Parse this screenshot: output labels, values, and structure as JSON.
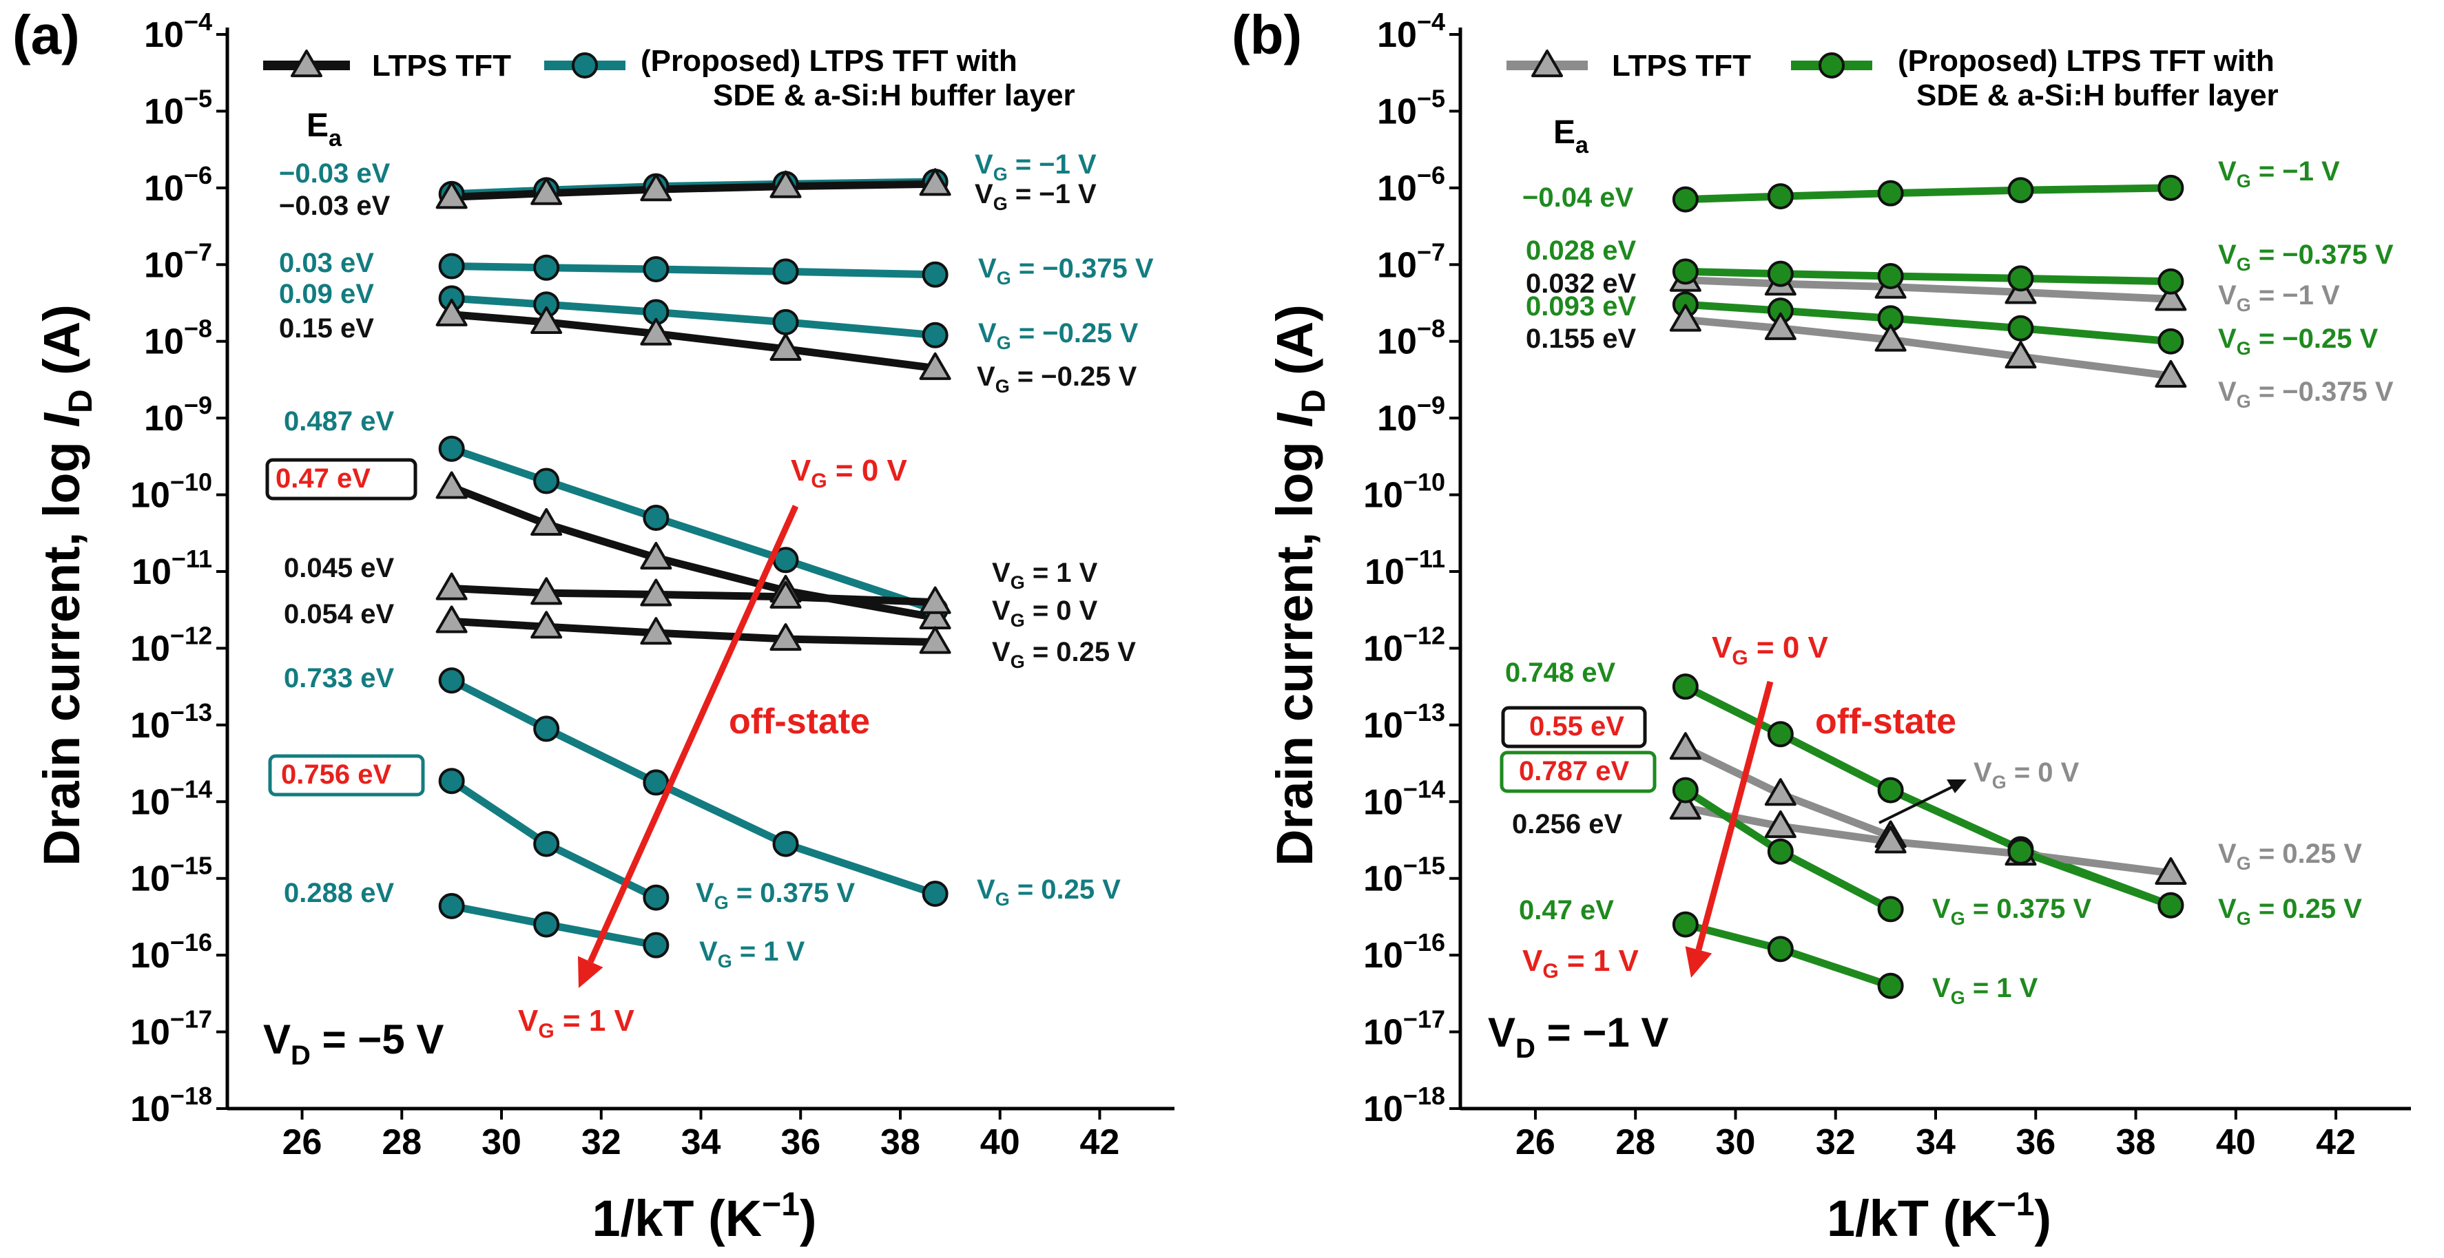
{
  "chart_data": [
    {
      "type": "line",
      "panel": "(a)",
      "xlabel_main": "1/kT (K",
      "xlabel_sup": "−1",
      "xlabel_end": ")",
      "ylabel_main": "Drain current, log ",
      "ylabel_var": "I",
      "ylabel_sub": "D",
      "ylabel_end": " (A)",
      "xlim": [
        24.5,
        43.5
      ],
      "ylim": [
        -18,
        -4
      ],
      "xticks": [
        "26",
        "28",
        "30",
        "32",
        "34",
        "36",
        "38",
        "40",
        "42"
      ],
      "yticks_base": "10",
      "yticks_exp": [
        "−4",
        "−5",
        "−6",
        "−7",
        "−8",
        "−9",
        "−10",
        "−11",
        "−12",
        "−13",
        "−14",
        "−15",
        "−16",
        "−17",
        "−18"
      ],
      "legend": [
        {
          "label": "LTPS TFT",
          "marker": "triangle",
          "color": "#111111"
        },
        {
          "label": "(Proposed) LTPS TFT with",
          "label2": "SDE & a-Si:H buffer layer",
          "marker": "circle",
          "color": "#137c80"
        }
      ],
      "ea_label": "E",
      "ea_sub": "a",
      "vd_main": "V",
      "vd_sub": "D",
      "vd_rest": " = −5 V",
      "offstate_label": "off-state",
      "arrow_top": {
        "main": "V",
        "sub": "G",
        "rest": " = 0 V"
      },
      "arrow_bottom": {
        "main": "V",
        "sub": "G",
        "rest": " = 1 V"
      },
      "series": [
        {
          "name": "Proposed V_G = -1 V",
          "marker": "circle",
          "color": "#137c80",
          "x": [
            29.0,
            30.9,
            33.1,
            35.7,
            38.7
          ],
          "y": [
            -6.08,
            -6.03,
            -5.98,
            -5.95,
            -5.92
          ]
        },
        {
          "name": "LTPS V_G = -1 V",
          "marker": "triangle",
          "color": "#111111",
          "x": [
            29.0,
            30.9,
            33.1,
            35.7,
            38.7
          ],
          "y": [
            -6.12,
            -6.07,
            -6.02,
            -5.98,
            -5.95
          ]
        },
        {
          "name": "Proposed V_G = -0.375 V",
          "marker": "circle",
          "color": "#137c80",
          "x": [
            29.0,
            30.9,
            33.1,
            35.7,
            38.7
          ],
          "y": [
            -7.02,
            -7.04,
            -7.06,
            -7.09,
            -7.13
          ]
        },
        {
          "name": "Proposed V_G = -0.25 V",
          "marker": "circle",
          "color": "#137c80",
          "x": [
            29.0,
            30.9,
            33.1,
            35.7,
            38.7
          ],
          "y": [
            -7.44,
            -7.52,
            -7.62,
            -7.75,
            -7.92
          ]
        },
        {
          "name": "LTPS V_G = -0.25 V",
          "marker": "triangle",
          "color": "#111111",
          "x": [
            29.0,
            30.9,
            33.1,
            35.7,
            38.7
          ],
          "y": [
            -7.65,
            -7.75,
            -7.9,
            -8.1,
            -8.35
          ]
        },
        {
          "name": "Proposed V_G = 0 V",
          "marker": "circle",
          "color": "#137c80",
          "x": [
            29.0,
            30.9,
            33.1,
            35.7,
            38.7
          ],
          "y": [
            -9.4,
            -9.82,
            -10.3,
            -10.85,
            -11.5
          ]
        },
        {
          "name": "LTPS V_G = 0 V",
          "marker": "triangle",
          "color": "#111111",
          "x": [
            29.0,
            30.9,
            33.1,
            35.7,
            38.7
          ],
          "y": [
            -9.9,
            -10.38,
            -10.82,
            -11.25,
            -11.6
          ]
        },
        {
          "name": "LTPS V_G = 1 V",
          "marker": "triangle",
          "color": "#111111",
          "x": [
            29.0,
            30.9,
            33.1,
            35.7,
            38.7
          ],
          "y": [
            -11.22,
            -11.28,
            -11.3,
            -11.33,
            -11.4
          ]
        },
        {
          "name": "LTPS V_G = 0.25 V",
          "marker": "triangle",
          "color": "#111111",
          "x": [
            29.0,
            30.9,
            33.1,
            35.7,
            38.7
          ],
          "y": [
            -11.65,
            -11.72,
            -11.8,
            -11.88,
            -11.92
          ]
        },
        {
          "name": "Proposed V_G = 0.25 V",
          "marker": "circle",
          "color": "#137c80",
          "x": [
            29.0,
            30.9,
            33.1,
            35.7,
            38.7
          ],
          "y": [
            -12.42,
            -13.05,
            -13.75,
            -14.55,
            -15.2
          ]
        },
        {
          "name": "Proposed V_G = 0.375 V",
          "marker": "circle",
          "color": "#137c80",
          "x": [
            29.0,
            30.9,
            33.1
          ],
          "y": [
            -13.73,
            -14.55,
            -15.25
          ]
        },
        {
          "name": "Proposed V_G = 1 V",
          "marker": "circle",
          "color": "#137c80",
          "x": [
            29.0,
            30.9,
            33.1
          ],
          "y": [
            -15.36,
            -15.6,
            -15.87
          ]
        }
      ],
      "annotations": [
        {
          "text": "−0.03 eV",
          "color": "#137c80"
        },
        {
          "text": "−0.03 eV",
          "color": "#111111"
        },
        {
          "text": "0.03 eV",
          "color": "#137c80"
        },
        {
          "text": "0.09 eV",
          "color": "#137c80"
        },
        {
          "text": "0.15 eV",
          "color": "#111111"
        },
        {
          "text": "0.487 eV",
          "color": "#137c80"
        },
        {
          "text": "0.47 eV",
          "color": "#e8201c",
          "box": "#111111"
        },
        {
          "text": "0.045 eV",
          "color": "#111111"
        },
        {
          "text": "0.054 eV",
          "color": "#111111"
        },
        {
          "text": "0.733 eV",
          "color": "#137c80"
        },
        {
          "text": "0.756 eV",
          "color": "#e8201c",
          "box": "#137c80"
        },
        {
          "text": "0.288 eV",
          "color": "#137c80"
        }
      ],
      "vg_labels": [
        {
          "main": "V",
          "sub": "G",
          "rest": " = −1 V",
          "color": "#137c80"
        },
        {
          "main": "V",
          "sub": "G",
          "rest": " = −1 V",
          "color": "#111111"
        },
        {
          "main": "V",
          "sub": "G",
          "rest": " = −0.375 V",
          "color": "#137c80"
        },
        {
          "main": "V",
          "sub": "G",
          "rest": " = −0.25 V",
          "color": "#137c80"
        },
        {
          "main": "V",
          "sub": "G",
          "rest": " = −0.25 V",
          "color": "#111111"
        },
        {
          "main": "V",
          "sub": "G",
          "rest": " = 1 V",
          "color": "#111111"
        },
        {
          "main": "V",
          "sub": "G",
          "rest": " = 0 V",
          "color": "#111111"
        },
        {
          "main": "V",
          "sub": "G",
          "rest": " = 0.25 V",
          "color": "#111111"
        },
        {
          "main": "V",
          "sub": "G",
          "rest": " = 0.375 V",
          "color": "#137c80"
        },
        {
          "main": "V",
          "sub": "G",
          "rest": " = 0.25 V",
          "color": "#137c80"
        },
        {
          "main": "V",
          "sub": "G",
          "rest": " = 1 V",
          "color": "#137c80"
        }
      ]
    },
    {
      "type": "line",
      "panel": "(b)",
      "xlabel_main": "1/kT (K",
      "xlabel_sup": "−1",
      "xlabel_end": ")",
      "ylabel_main": "Drain current, log ",
      "ylabel_var": "I",
      "ylabel_sub": "D",
      "ylabel_end": " (A)",
      "xlim": [
        24.5,
        43.5
      ],
      "ylim": [
        -18,
        -4
      ],
      "xticks": [
        "26",
        "28",
        "30",
        "32",
        "34",
        "36",
        "38",
        "40",
        "42"
      ],
      "yticks_base": "10",
      "yticks_exp": [
        "−4",
        "−5",
        "−6",
        "−7",
        "−8",
        "−9",
        "−10",
        "−11",
        "−12",
        "−13",
        "−14",
        "−15",
        "−16",
        "−17",
        "−18"
      ],
      "legend": [
        {
          "label": "LTPS TFT",
          "marker": "triangle",
          "color": "#8c8c8c"
        },
        {
          "label": "(Proposed) LTPS TFT with",
          "label2": "SDE & a-Si:H buffer layer",
          "marker": "circle",
          "color": "#1e8a1e"
        }
      ],
      "ea_label": "E",
      "ea_sub": "a",
      "vd_main": "V",
      "vd_sub": "D",
      "vd_rest": " = −1 V",
      "offstate_label": "off-state",
      "arrow_top": {
        "main": "V",
        "sub": "G",
        "rest": " = 0 V"
      },
      "arrow_bottom": {
        "main": "V",
        "sub": "G",
        "rest": " = 1 V"
      },
      "series": [
        {
          "name": "Proposed V_G = -1 V",
          "marker": "circle",
          "color": "#1e8a1e",
          "x": [
            29.0,
            30.9,
            33.1,
            35.7,
            38.7
          ],
          "y": [
            -6.15,
            -6.11,
            -6.07,
            -6.03,
            -6.0
          ]
        },
        {
          "name": "LTPS V_G = -1 V",
          "marker": "triangle",
          "color": "#8c8c8c",
          "x": [
            29.0,
            30.9,
            33.1,
            35.7,
            38.7
          ],
          "y": [
            -7.2,
            -7.25,
            -7.29,
            -7.36,
            -7.45
          ]
        },
        {
          "name": "Proposed V_G = -0.375 V",
          "marker": "circle",
          "color": "#1e8a1e",
          "x": [
            29.0,
            30.9,
            33.1,
            35.7,
            38.7
          ],
          "y": [
            -7.09,
            -7.12,
            -7.15,
            -7.18,
            -7.22
          ]
        },
        {
          "name": "Proposed V_G = -0.25 V",
          "marker": "circle",
          "color": "#1e8a1e",
          "x": [
            29.0,
            30.9,
            33.1,
            35.7,
            38.7
          ],
          "y": [
            -7.52,
            -7.6,
            -7.7,
            -7.83,
            -8.0
          ]
        },
        {
          "name": "LTPS V_G = -0.375 V",
          "marker": "triangle",
          "color": "#8c8c8c",
          "x": [
            29.0,
            30.9,
            33.1,
            35.7,
            38.7
          ],
          "y": [
            -7.72,
            -7.83,
            -7.98,
            -8.2,
            -8.45
          ]
        },
        {
          "name": "Proposed V_G = 0 V",
          "marker": "circle",
          "color": "#1e8a1e",
          "x": [
            29.0,
            30.9,
            33.1,
            35.7,
            38.7
          ],
          "y": [
            -12.5,
            -13.12,
            -13.85,
            -14.62,
            -15.35
          ]
        },
        {
          "name": "LTPS V_G = 0 V",
          "marker": "triangle",
          "color": "#8c8c8c",
          "x": [
            29.0,
            30.9,
            33.1
          ],
          "y": [
            -13.3,
            -13.9,
            -14.45
          ]
        },
        {
          "name": "LTPS V_G = 0.25 V",
          "marker": "triangle",
          "color": "#8c8c8c",
          "x": [
            29.0,
            30.9,
            33.1,
            35.7,
            38.7
          ],
          "y": [
            -14.08,
            -14.32,
            -14.52,
            -14.68,
            -14.93
          ]
        },
        {
          "name": "Proposed V_G = 0.375 V",
          "marker": "circle",
          "color": "#1e8a1e",
          "x": [
            29.0,
            30.9,
            33.1
          ],
          "y": [
            -13.85,
            -14.65,
            -15.4
          ]
        },
        {
          "name": "Proposed V_G = 0.25 V",
          "marker": "circle",
          "color": "#1e8a1e",
          "x": [
            35.7,
            38.7
          ],
          "y": [
            -14.65,
            -15.35
          ]
        },
        {
          "name": "Proposed V_G = 1 V",
          "marker": "circle",
          "color": "#1e8a1e",
          "x": [
            29.0,
            30.9,
            33.1
          ],
          "y": [
            -15.6,
            -15.92,
            -16.4
          ]
        }
      ],
      "annotations": [
        {
          "text": "−0.04 eV",
          "color": "#1e8a1e"
        },
        {
          "text": "0.028 eV",
          "color": "#1e8a1e"
        },
        {
          "text": "0.032 eV",
          "color": "#111111"
        },
        {
          "text": "0.093 eV",
          "color": "#1e8a1e"
        },
        {
          "text": "0.155 eV",
          "color": "#111111"
        },
        {
          "text": "0.748 eV",
          "color": "#1e8a1e"
        },
        {
          "text": "0.55 eV",
          "color": "#e8201c",
          "box": "#111111"
        },
        {
          "text": "0.787 eV",
          "color": "#e8201c",
          "box": "#1e8a1e"
        },
        {
          "text": "0.256 eV",
          "color": "#111111"
        },
        {
          "text": "0.47 eV",
          "color": "#1e8a1e"
        }
      ],
      "vg_labels": [
        {
          "main": "V",
          "sub": "G",
          "rest": " = −1 V",
          "color": "#1e8a1e"
        },
        {
          "main": "V",
          "sub": "G",
          "rest": " = −0.375 V",
          "color": "#1e8a1e"
        },
        {
          "main": "V",
          "sub": "G",
          "rest": " = −1 V",
          "color": "#8c8c8c"
        },
        {
          "main": "V",
          "sub": "G",
          "rest": " = −0.25 V",
          "color": "#1e8a1e"
        },
        {
          "main": "V",
          "sub": "G",
          "rest": " = −0.375 V",
          "color": "#8c8c8c"
        },
        {
          "main": "V",
          "sub": "G",
          "rest": " = 0 V",
          "color": "#8c8c8c"
        },
        {
          "main": "V",
          "sub": "G",
          "rest": " = 0.25 V",
          "color": "#8c8c8c"
        },
        {
          "main": "V",
          "sub": "G",
          "rest": " = 0.375 V",
          "color": "#1e8a1e"
        },
        {
          "main": "V",
          "sub": "G",
          "rest": " = 0.25 V",
          "color": "#1e8a1e"
        },
        {
          "main": "V",
          "sub": "G",
          "rest": " = 1 V",
          "color": "#1e8a1e"
        }
      ]
    }
  ],
  "colors": {
    "red": "#e8201c",
    "teal": "#137c80",
    "green": "#1e8a1e",
    "gray": "#8c8c8c",
    "black": "#111111"
  }
}
